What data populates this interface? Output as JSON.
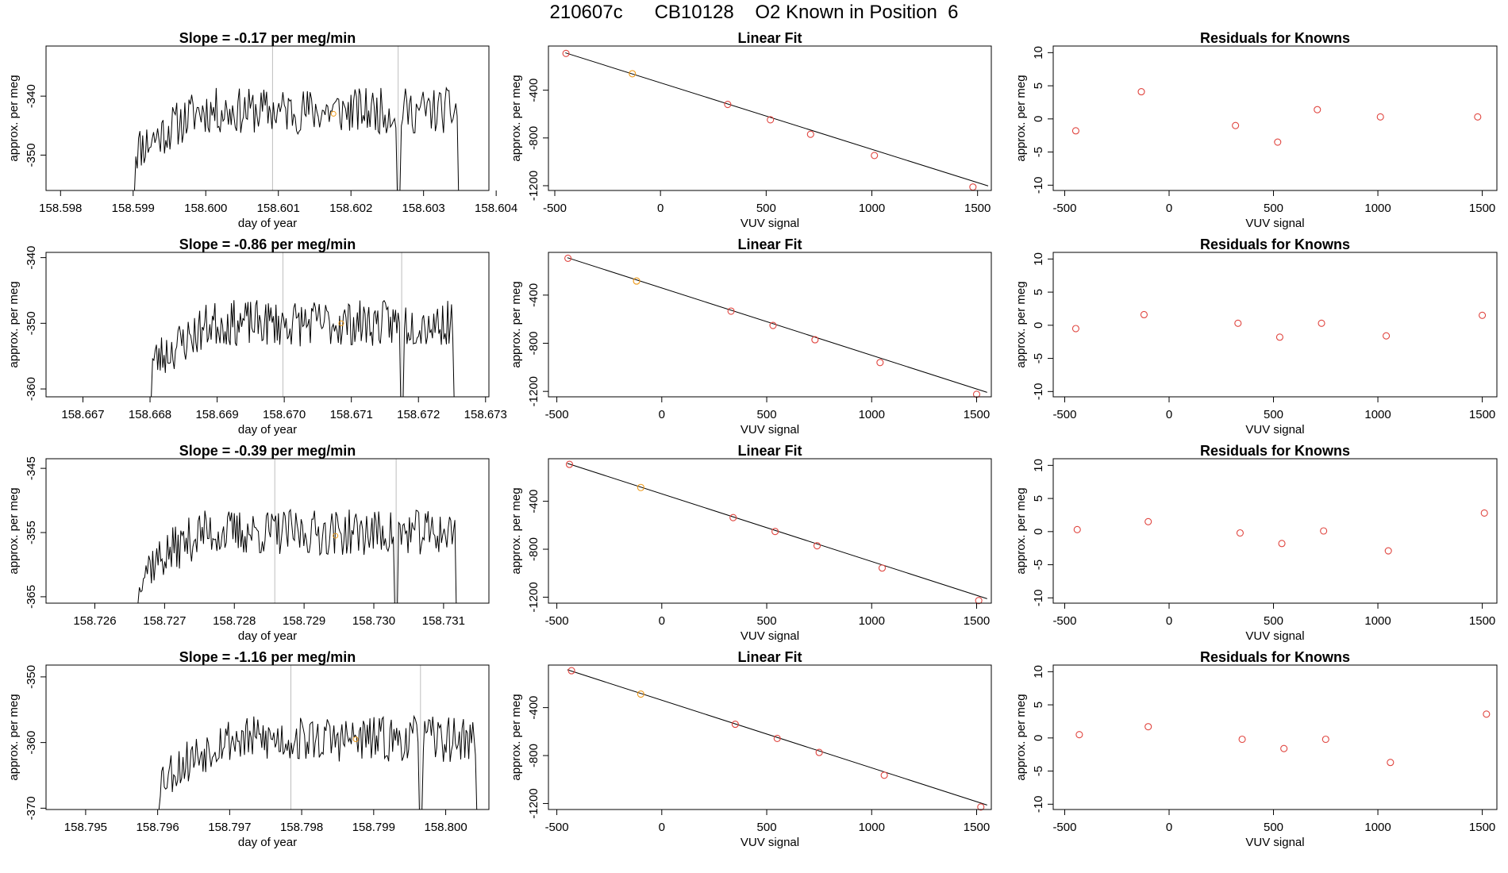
{
  "page": {
    "title": "210607c      CB10128    O2 Known in Position  6"
  },
  "chart_data": [
    {
      "type": "line",
      "title": "Slope =  -0.17  per meg/min",
      "xlabel": "day of year",
      "ylabel": "approx. per meg",
      "xlim": [
        158.5978,
        158.6039
      ],
      "ylim": [
        -356,
        -331.5
      ],
      "xticks": [
        "158.598",
        "158.599",
        "158.600",
        "158.601",
        "158.602",
        "158.603",
        "158.604"
      ],
      "yticks": [
        "-340",
        "-350"
      ],
      "vlines": [
        158.60092,
        158.60265
      ],
      "orange_marker": [
        158.60176,
        -343
      ],
      "trace_start": 158.599,
      "trace_end": 158.6035,
      "trace_base": -356,
      "trace_level": -342.5,
      "seed": 11
    },
    {
      "type": "scatter",
      "title": "Linear Fit",
      "xlabel": "VUV signal",
      "ylabel": "approx. per meg",
      "xlim": [
        -530,
        1565
      ],
      "ylim": [
        -1240,
        -30
      ],
      "xticks": [
        "-500",
        "0",
        "500",
        "1000",
        "1500"
      ],
      "yticks": [
        "-400",
        "-800",
        "-1200"
      ],
      "fit_line": {
        "x": [
          -450,
          1550
        ],
        "y": [
          -87,
          -1202
        ]
      },
      "points": {
        "x": [
          -447,
          -133,
          318,
          520,
          710,
          1012,
          1478
        ],
        "y": [
          -92,
          -262,
          -519,
          -648,
          -769,
          -947,
          -1211
        ]
      },
      "highlight_index": 1
    },
    {
      "type": "scatter",
      "title": "Residuals for Knowns",
      "xlabel": "VUV signal",
      "ylabel": "approx. per meg",
      "xlim": [
        -555,
        1570
      ],
      "ylim": [
        -10.8,
        11
      ],
      "xticks": [
        "-500",
        "0",
        "500",
        "1000",
        "1500"
      ],
      "yticks": [
        "10",
        "5",
        "0",
        "-5",
        "-10"
      ],
      "points": {
        "x": [
          -447,
          -133,
          318,
          520,
          710,
          1012,
          1478
        ],
        "y": [
          -1.8,
          4.1,
          -1.0,
          -3.5,
          1.4,
          0.3,
          0.3
        ]
      }
    },
    {
      "type": "line",
      "title": "Slope =  -0.86  per meg/min",
      "xlabel": "day of year",
      "ylabel": "approx. per meg",
      "xlim": [
        158.66645,
        158.67305
      ],
      "ylim": [
        -361.2,
        -339.2
      ],
      "xticks": [
        "158.667",
        "158.668",
        "158.669",
        "158.670",
        "158.671",
        "158.672",
        "158.673"
      ],
      "yticks": [
        "-340",
        "-350",
        "-360"
      ],
      "vlines": [
        158.66998,
        158.67175
      ],
      "orange_marker": [
        158.67085,
        -350
      ],
      "trace_start": 158.668,
      "trace_end": 158.67255,
      "trace_base": -361.2,
      "trace_level": -350,
      "seed": 23
    },
    {
      "type": "scatter",
      "title": "Linear Fit",
      "xlabel": "VUV signal",
      "ylabel": "approx. per meg",
      "xlim": [
        -540,
        1570
      ],
      "ylim": [
        -1245,
        -45
      ],
      "xticks": [
        "-500",
        "0",
        "500",
        "1000",
        "1500"
      ],
      "yticks": [
        "-400",
        "-800",
        "-1200"
      ],
      "fit_line": {
        "x": [
          -450,
          1550
        ],
        "y": [
          -89,
          -1208
        ]
      },
      "points": {
        "x": [
          -447,
          -120,
          330,
          530,
          730,
          1040,
          1500
        ],
        "y": [
          -94,
          -283,
          -533,
          -652,
          -771,
          -960,
          -1224
        ]
      },
      "highlight_index": 1
    },
    {
      "type": "scatter",
      "title": "Residuals for Knowns",
      "xlabel": "VUV signal",
      "ylabel": "approx. per meg",
      "xlim": [
        -555,
        1570
      ],
      "ylim": [
        -10.8,
        11
      ],
      "xticks": [
        "-500",
        "0",
        "500",
        "1000",
        "1500"
      ],
      "yticks": [
        "10",
        "5",
        "0",
        "-5",
        "-10"
      ],
      "points": {
        "x": [
          -447,
          -120,
          330,
          530,
          730,
          1040,
          1500
        ],
        "y": [
          -0.5,
          1.6,
          0.3,
          -1.8,
          0.3,
          -1.6,
          1.5
        ]
      }
    },
    {
      "type": "line",
      "title": "Slope =  -0.39  per meg/min",
      "xlabel": "day of year",
      "ylabel": "approx. per meg",
      "xlim": [
        158.7253,
        158.73165
      ],
      "ylim": [
        -366,
        -343.5
      ],
      "xticks": [
        "158.726",
        "158.727",
        "158.728",
        "158.729",
        "158.730",
        "158.731"
      ],
      "yticks": [
        "-345",
        "-355",
        "-365"
      ],
      "vlines": [
        158.72858,
        158.73032
      ],
      "orange_marker": [
        158.72945,
        -355.5
      ],
      "trace_start": 158.7266,
      "trace_end": 158.7312,
      "trace_base": -366,
      "trace_level": -355,
      "seed": 37
    },
    {
      "type": "scatter",
      "title": "Linear Fit",
      "xlabel": "VUV signal",
      "ylabel": "approx. per meg",
      "xlim": [
        -540,
        1570
      ],
      "ylim": [
        -1250,
        -45
      ],
      "xticks": [
        "-500",
        "0",
        "500",
        "1000",
        "1500"
      ],
      "yticks": [
        "-400",
        "-800",
        "-1200"
      ],
      "fit_line": {
        "x": [
          -450,
          1550
        ],
        "y": [
          -84,
          -1213
        ]
      },
      "points": {
        "x": [
          -440,
          -100,
          340,
          540,
          740,
          1050,
          1510
        ],
        "y": [
          -92,
          -285,
          -536,
          -652,
          -771,
          -957,
          -1228
        ]
      },
      "highlight_index": 1
    },
    {
      "type": "scatter",
      "title": "Residuals for Knowns",
      "xlabel": "VUV signal",
      "ylabel": "approx. per meg",
      "xlim": [
        -555,
        1570
      ],
      "ylim": [
        -10.8,
        11
      ],
      "xticks": [
        "-500",
        "0",
        "500",
        "1000",
        "1500"
      ],
      "yticks": [
        "10",
        "5",
        "0",
        "-5",
        "-10"
      ],
      "points": {
        "x": [
          -440,
          -100,
          340,
          540,
          740,
          1050,
          1510
        ],
        "y": [
          0.3,
          1.5,
          -0.2,
          -1.8,
          0.1,
          -2.9,
          2.8
        ]
      }
    },
    {
      "type": "line",
      "title": "Slope =  -1.16  per meg/min",
      "xlabel": "day of year",
      "ylabel": "approx. per meg",
      "xlim": [
        158.79445,
        158.8006
      ],
      "ylim": [
        -370.2,
        -348.2
      ],
      "xticks": [
        "158.795",
        "158.796",
        "158.797",
        "158.798",
        "158.799",
        "158.800"
      ],
      "yticks": [
        "-350",
        "-360",
        "-370"
      ],
      "vlines": [
        158.79785,
        158.79965
      ],
      "orange_marker": [
        158.79875,
        -359.5
      ],
      "trace_start": 158.796,
      "trace_end": 158.80045,
      "trace_base": -370.2,
      "trace_level": -359.5,
      "seed": 53
    },
    {
      "type": "scatter",
      "title": "Linear Fit",
      "xlabel": "VUV signal",
      "ylabel": "approx. per meg",
      "xlim": [
        -540,
        1570
      ],
      "ylim": [
        -1250,
        -45
      ],
      "xticks": [
        "-500",
        "0",
        "500",
        "1000",
        "1500"
      ],
      "yticks": [
        "-400",
        "-800",
        "-1200"
      ],
      "fit_line": {
        "x": [
          -450,
          1550
        ],
        "y": [
          -84,
          -1213
        ]
      },
      "points": {
        "x": [
          -430,
          -100,
          350,
          550,
          750,
          1060,
          1520
        ],
        "y": [
          -92,
          -287,
          -539,
          -657,
          -774,
          -964,
          -1229
        ]
      },
      "highlight_index": 1
    },
    {
      "type": "scatter",
      "title": "Residuals for Knowns",
      "xlabel": "VUV signal",
      "ylabel": "approx. per meg",
      "xlim": [
        -555,
        1570
      ],
      "ylim": [
        -10.8,
        11
      ],
      "xticks": [
        "-500",
        "0",
        "500",
        "1000",
        "1500"
      ],
      "yticks": [
        "10",
        "5",
        "0",
        "-5",
        "-10"
      ],
      "points": {
        "x": [
          -430,
          -100,
          350,
          550,
          750,
          1060,
          1520
        ],
        "y": [
          0.5,
          1.7,
          -0.2,
          -1.6,
          -0.2,
          -3.7,
          3.6
        ]
      }
    }
  ],
  "colors": {
    "trace": "#000000",
    "vline": "#bebebe",
    "point": "#e0453f",
    "highlight": "#ee9a1a",
    "fit": "#000000"
  }
}
